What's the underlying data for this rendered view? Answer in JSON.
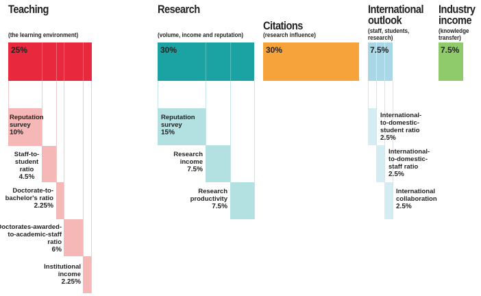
{
  "colors": {
    "teaching": "#e8283c",
    "teaching_light": "#f5b8b6",
    "teaching_line": "#f3c9c8",
    "research": "#1ba3a3",
    "research_light": "#b3e0e0",
    "research_line": "#c4e6e6",
    "citations": "#f6a33b",
    "international": "#a9d7e6",
    "international_light": "#d5ecf2",
    "international_line": "#cfe7ef",
    "industry": "#8fca6b"
  },
  "pillars": {
    "teaching": {
      "title": "Teaching",
      "subtitle": "(the learning environment)",
      "weight": "25%",
      "items": [
        {
          "label_lines": [
            "Reputation",
            "survey"
          ],
          "value": "10%"
        },
        {
          "label_lines": [
            "Staff-to-",
            "student",
            "ratio"
          ],
          "value": "4.5%"
        },
        {
          "label_lines": [
            "Doctorate-to-",
            "bachelor's ratio"
          ],
          "value": "2.25%"
        },
        {
          "label_lines": [
            "Doctorates-awarded-",
            "to-academic-staff",
            "ratio"
          ],
          "value": "6%"
        },
        {
          "label_lines": [
            "Institutional",
            "income"
          ],
          "value": "2.25%"
        }
      ]
    },
    "research": {
      "title": "Research",
      "subtitle": "(volume, income and reputation)",
      "weight": "30%",
      "items": [
        {
          "label_lines": [
            "Reputation",
            "survey"
          ],
          "value": "15%"
        },
        {
          "label_lines": [
            "Research",
            "income"
          ],
          "value": "7.5%"
        },
        {
          "label_lines": [
            "Research",
            "productivity"
          ],
          "value": "7.5%"
        }
      ]
    },
    "citations": {
      "title": "Citations",
      "subtitle": "(research influence)",
      "weight": "30%"
    },
    "international": {
      "title_lines": [
        "International",
        "outlook"
      ],
      "subtitle_lines": [
        "(staff, students,",
        "research)"
      ],
      "weight": "7.5%",
      "items": [
        {
          "label_lines": [
            "International-",
            "to-domestic-",
            "student ratio"
          ],
          "value": "2.5%"
        },
        {
          "label_lines": [
            "International-",
            "to-domestic-",
            "staff ratio"
          ],
          "value": "2.5%"
        },
        {
          "label_lines": [
            "International",
            "collaboration"
          ],
          "value": "2.5%"
        }
      ]
    },
    "industry": {
      "title_lines": [
        "Industry",
        "income"
      ],
      "subtitle_lines": [
        "(knowledge",
        "transfer)"
      ],
      "weight": "7.5%"
    }
  }
}
